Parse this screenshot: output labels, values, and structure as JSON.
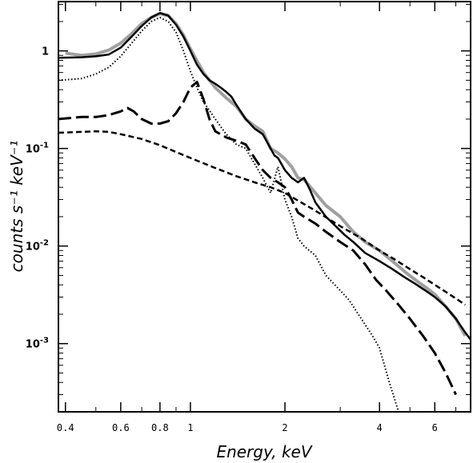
{
  "chart_data": {
    "type": "line",
    "title": "",
    "xlabel": "Energy, keV",
    "ylabel": "counts s⁻¹ keV⁻¹",
    "x_scale": "log",
    "y_scale": "log",
    "xlim": [
      0.38,
      7.8
    ],
    "ylim": [
      0.0002,
      3.2
    ],
    "grid": false,
    "legend": "none",
    "x_ticks": [
      {
        "value": 0.4,
        "label": "0.4"
      },
      {
        "value": 0.6,
        "label": "0.6"
      },
      {
        "value": 0.8,
        "label": "0.8"
      },
      {
        "value": 1,
        "label": "1"
      },
      {
        "value": 2,
        "label": "2"
      },
      {
        "value": 4,
        "label": "4"
      },
      {
        "value": 6,
        "label": "6"
      }
    ],
    "y_ticks": [
      {
        "value": 1,
        "base": "1",
        "exp": ""
      },
      {
        "value": 0.1,
        "base": "10",
        "exp": "-1"
      },
      {
        "value": 0.01,
        "base": "10",
        "exp": "-2"
      },
      {
        "value": 0.001,
        "base": "10",
        "exp": "-3"
      }
    ],
    "series": [
      {
        "style": "data-gray",
        "color": "#a0a0a0",
        "x": [
          0.4,
          0.45,
          0.5,
          0.55,
          0.6,
          0.65,
          0.7,
          0.75,
          0.8,
          0.85,
          0.9,
          0.95,
          1.0,
          1.1,
          1.2,
          1.3,
          1.4,
          1.5,
          1.6,
          1.7,
          1.8,
          1.9,
          2.0,
          2.1,
          2.2,
          2.3,
          2.5,
          2.7,
          3.0,
          3.3,
          3.6,
          4.0,
          4.4,
          4.8,
          5.2,
          5.6,
          6.0,
          6.5,
          7.0,
          7.5
        ],
        "y": [
          0.95,
          0.9,
          0.93,
          1.02,
          1.2,
          1.5,
          1.9,
          2.2,
          2.4,
          2.3,
          1.9,
          1.45,
          1.05,
          0.6,
          0.42,
          0.33,
          0.27,
          0.2,
          0.17,
          0.15,
          0.1,
          0.09,
          0.078,
          0.065,
          0.05,
          0.048,
          0.035,
          0.026,
          0.02,
          0.014,
          0.011,
          0.009,
          0.007,
          0.0055,
          0.0045,
          0.0038,
          0.0032,
          0.0024,
          0.0018,
          0.0012
        ]
      },
      {
        "style": "solid",
        "color": "#000000",
        "x": [
          0.38,
          0.45,
          0.5,
          0.55,
          0.6,
          0.65,
          0.7,
          0.75,
          0.8,
          0.85,
          0.9,
          0.95,
          1.0,
          1.05,
          1.1,
          1.15,
          1.2,
          1.25,
          1.3,
          1.35,
          1.4,
          1.5,
          1.6,
          1.7,
          1.8,
          1.85,
          1.9,
          2.0,
          2.1,
          2.2,
          2.3,
          2.4,
          2.5,
          2.7,
          2.9,
          3.1,
          3.3,
          3.6,
          4.0,
          4.4,
          4.8,
          5.2,
          5.6,
          6.0,
          6.5,
          7.0,
          7.5,
          7.8
        ],
        "y": [
          0.85,
          0.86,
          0.88,
          0.92,
          1.08,
          1.4,
          1.8,
          2.2,
          2.45,
          2.3,
          1.85,
          1.4,
          1.0,
          0.72,
          0.58,
          0.5,
          0.46,
          0.42,
          0.38,
          0.34,
          0.28,
          0.2,
          0.16,
          0.14,
          0.1,
          0.085,
          0.08,
          0.06,
          0.05,
          0.045,
          0.05,
          0.038,
          0.028,
          0.02,
          0.016,
          0.013,
          0.011,
          0.0085,
          0.007,
          0.0058,
          0.0048,
          0.0041,
          0.0035,
          0.003,
          0.0024,
          0.0018,
          0.0013,
          0.0011
        ]
      },
      {
        "style": "dotted",
        "color": "#000000",
        "x": [
          0.38,
          0.45,
          0.5,
          0.55,
          0.6,
          0.65,
          0.7,
          0.75,
          0.8,
          0.85,
          0.9,
          0.95,
          1.0,
          1.05,
          1.1,
          1.2,
          1.3,
          1.4,
          1.5,
          1.6,
          1.7,
          1.8,
          1.9,
          2.0,
          2.1,
          2.2,
          2.3,
          2.5,
          2.7,
          3.0,
          3.2,
          3.5,
          3.8,
          4.0,
          4.3,
          4.6
        ],
        "y": [
          0.5,
          0.52,
          0.58,
          0.68,
          0.88,
          1.2,
          1.6,
          2.0,
          2.2,
          2.0,
          1.55,
          1.0,
          0.62,
          0.42,
          0.3,
          0.2,
          0.14,
          0.11,
          0.1,
          0.07,
          0.05,
          0.035,
          0.065,
          0.03,
          0.02,
          0.012,
          0.01,
          0.008,
          0.005,
          0.0035,
          0.0028,
          0.0018,
          0.0012,
          0.0009,
          0.0004,
          0.0002
        ]
      },
      {
        "style": "long-dash",
        "color": "#000000",
        "x": [
          0.38,
          0.45,
          0.5,
          0.55,
          0.6,
          0.63,
          0.66,
          0.7,
          0.75,
          0.8,
          0.85,
          0.9,
          0.95,
          1.0,
          1.05,
          1.1,
          1.15,
          1.2,
          1.3,
          1.4,
          1.5,
          1.6,
          1.7,
          1.8,
          1.9,
          2.0,
          2.1,
          2.2,
          2.3,
          2.5,
          2.7,
          3.0,
          3.3,
          3.6,
          3.9,
          4.2,
          4.6,
          5.0,
          5.5,
          6.0,
          6.5,
          7.0
        ],
        "y": [
          0.2,
          0.21,
          0.21,
          0.22,
          0.24,
          0.26,
          0.24,
          0.2,
          0.18,
          0.18,
          0.19,
          0.23,
          0.3,
          0.42,
          0.48,
          0.32,
          0.2,
          0.15,
          0.13,
          0.12,
          0.11,
          0.08,
          0.06,
          0.05,
          0.045,
          0.04,
          0.03,
          0.022,
          0.02,
          0.017,
          0.014,
          0.011,
          0.009,
          0.0065,
          0.0045,
          0.0035,
          0.0025,
          0.0018,
          0.0012,
          0.0008,
          0.0005,
          0.0003
        ]
      },
      {
        "style": "short-dash",
        "color": "#000000",
        "x": [
          0.38,
          0.45,
          0.5,
          0.55,
          0.6,
          0.7,
          0.8,
          0.9,
          1.0,
          1.2,
          1.4,
          1.6,
          1.8,
          2.0,
          2.5,
          3.0,
          3.5,
          4.0,
          4.5,
          5.0,
          5.5,
          6.0,
          6.5,
          7.0,
          7.5
        ],
        "y": [
          0.145,
          0.148,
          0.15,
          0.148,
          0.14,
          0.125,
          0.108,
          0.092,
          0.08,
          0.063,
          0.052,
          0.045,
          0.04,
          0.035,
          0.023,
          0.016,
          0.012,
          0.009,
          0.0072,
          0.0058,
          0.0048,
          0.004,
          0.0034,
          0.0029,
          0.0025
        ]
      }
    ]
  }
}
